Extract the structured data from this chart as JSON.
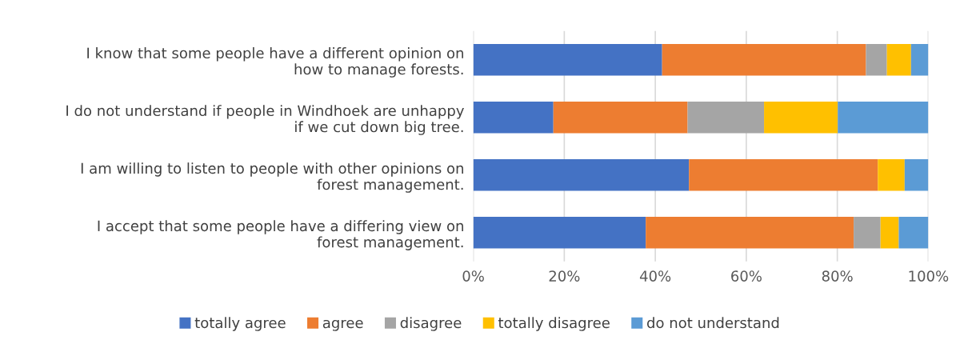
{
  "chart_data": {
    "type": "bar",
    "orientation": "horizontal",
    "stacked": true,
    "categories": [
      "I know that some people have a different opinion on\nhow to manage forests.",
      "I do not understand if people in Windhoek are unhappy\nif we cut down big tree.",
      "I am willing to listen to people with other opinions on\nforest management.",
      "I accept that some people have a differing view on\nforest management."
    ],
    "series": [
      {
        "name": "totally agree",
        "color": "#4472c4",
        "values": [
          41.5,
          17.6,
          47.4,
          37.9
        ]
      },
      {
        "name": "agree",
        "color": "#ed7d31",
        "values": [
          44.8,
          29.5,
          41.5,
          45.7
        ]
      },
      {
        "name": "disagree",
        "color": "#a5a5a5",
        "values": [
          4.6,
          16.8,
          0,
          5.9
        ]
      },
      {
        "name": "totally disagree",
        "color": "#ffc000",
        "values": [
          5.3,
          16.2,
          5.9,
          4.0
        ]
      },
      {
        "name": "do not understand",
        "color": "#5b9bd5",
        "values": [
          3.8,
          19.9,
          5.2,
          6.5
        ]
      }
    ],
    "xlim": [
      0,
      100
    ],
    "xticks": [
      {
        "value": 0,
        "label": "0%"
      },
      {
        "value": 20,
        "label": "20%"
      },
      {
        "value": 40,
        "label": "40%"
      },
      {
        "value": 60,
        "label": "60%"
      },
      {
        "value": 80,
        "label": "80%"
      },
      {
        "value": 100,
        "label": "100%"
      }
    ],
    "grid": "x",
    "legend": "bottom"
  }
}
